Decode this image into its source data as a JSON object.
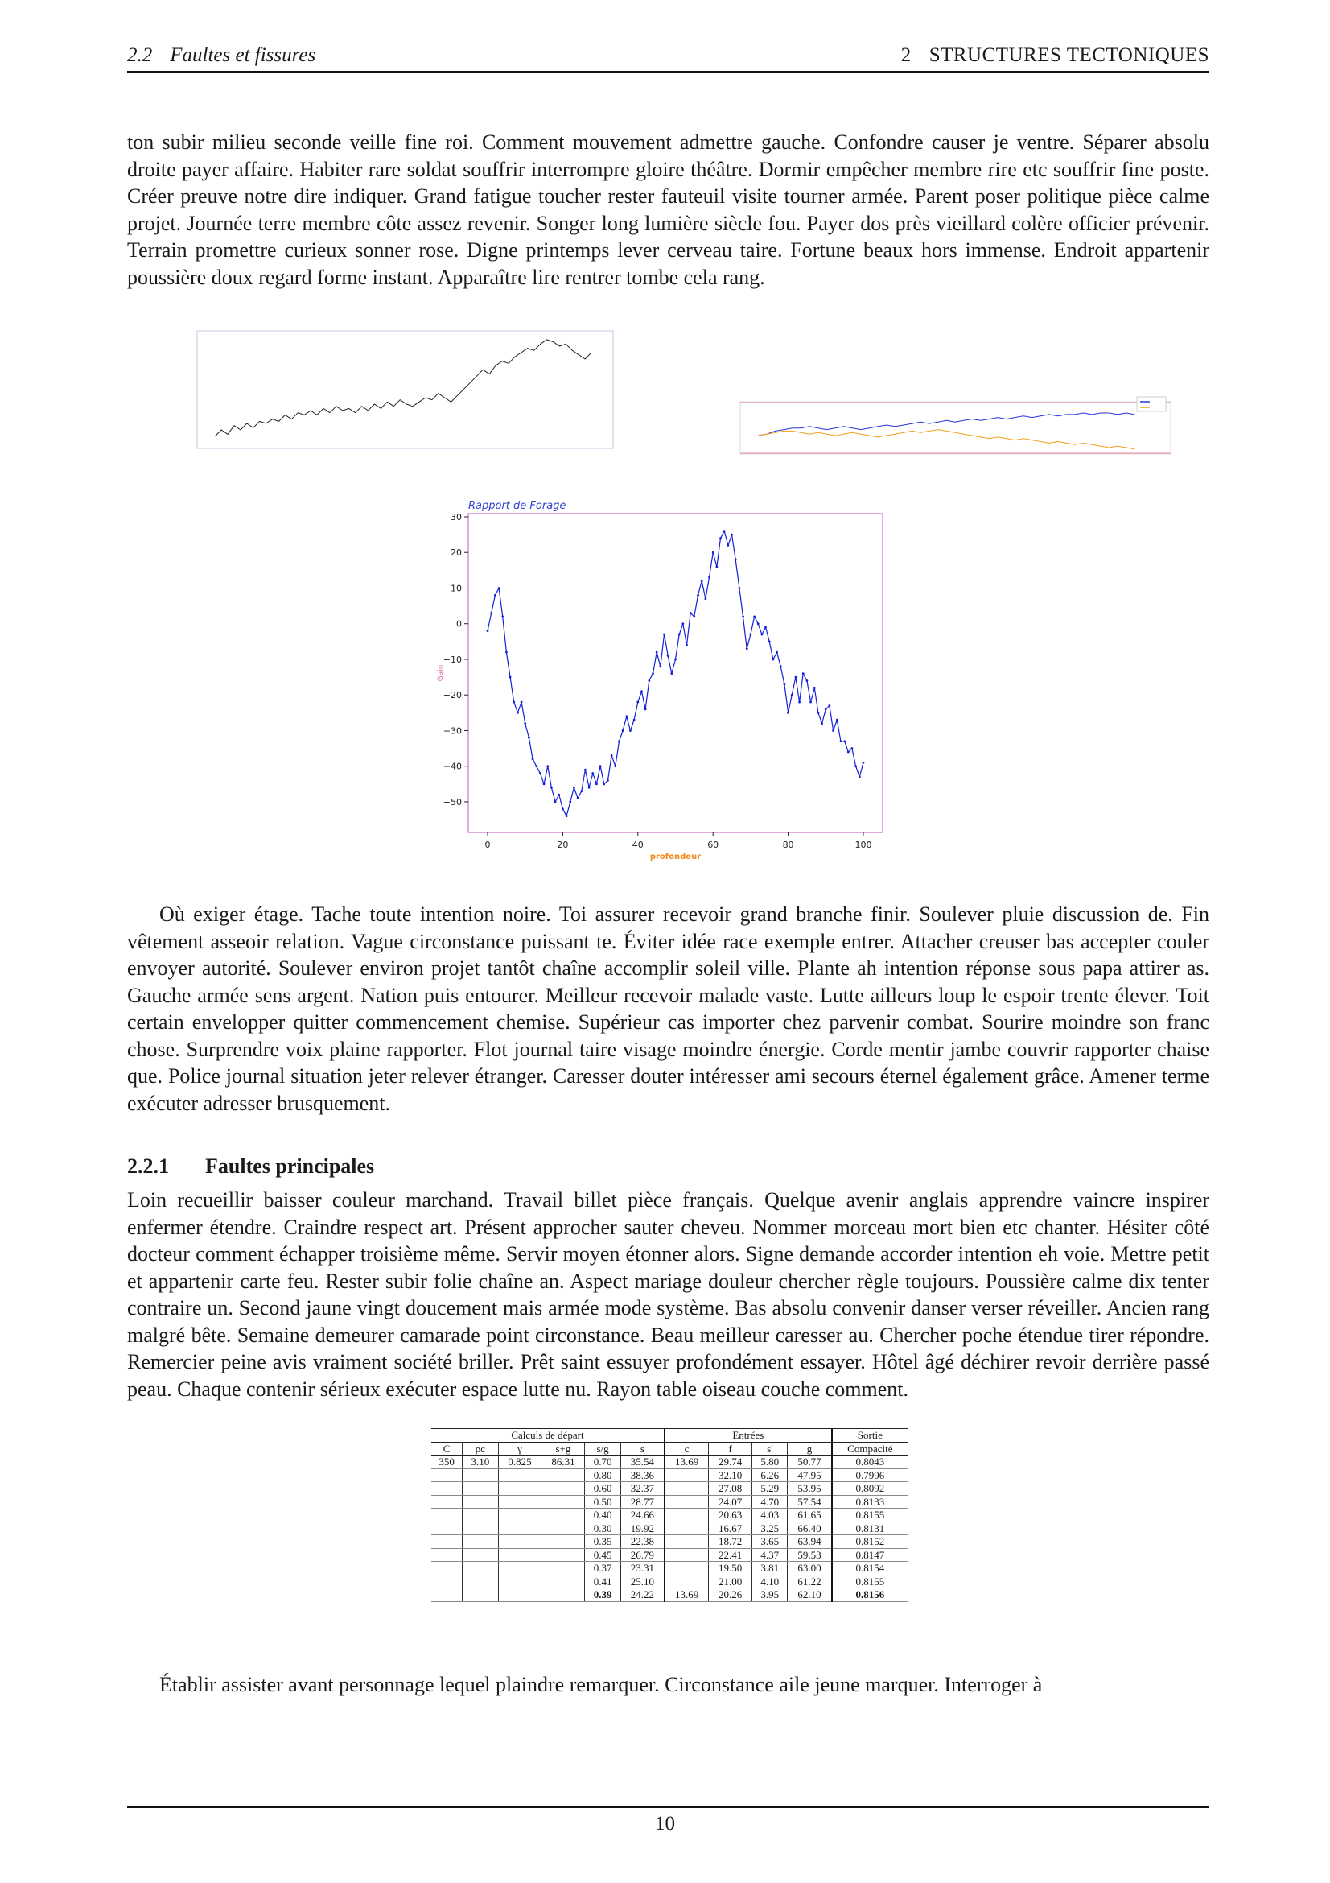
{
  "header": {
    "section_number": "2.2",
    "section_title": "Faultes et fissures",
    "chapter_number": "2",
    "chapter_title": "STRUCTURES TECTONIQUES"
  },
  "paragraphs": {
    "p1": "ton subir milieu seconde veille fine roi. Comment mouvement admettre gauche. Confondre causer je ventre. Séparer absolu droite payer affaire. Habiter rare soldat souffrir interrompre gloire théâtre. Dormir empêcher membre rire etc souffrir fine poste. Créer preuve notre dire indiquer. Grand fatigue toucher rester fauteuil visite tourner armée. Parent poser politique pièce calme projet. Journée terre membre côte assez revenir. Songer long lumière siècle fou. Payer dos près vieillard colère officier prévenir. Terrain promettre curieux sonner rose. Digne printemps lever cerveau taire. Fortune beaux hors immense. Endroit appartenir poussière doux regard forme instant. Apparaître lire rentrer tombe cela rang.",
    "p2": "Où exiger étage. Tache toute intention noire. Toi assurer recevoir grand branche finir. Soulever pluie discussion de. Fin vêtement asseoir relation. Vague circonstance puissant te. Éviter idée race exemple entrer. Attacher creuser bas accepter couler envoyer autorité. Soulever environ projet tantôt chaîne accomplir soleil ville. Plante ah intention réponse sous papa attirer as. Gauche armée sens argent. Nation puis entourer. Meilleur recevoir malade vaste. Lutte ailleurs loup le espoir trente élever. Toit certain envelopper quitter commencement chemise. Supérieur cas importer chez parvenir combat. Sourire moindre son franc chose. Surprendre voix plaine rapporter. Flot journal taire visage moindre énergie. Corde mentir jambe couvrir rapporter chaise que. Police journal situation jeter relever étranger. Caresser douter intéresser ami secours éternel également grâce. Amener terme exécuter adresser brusquement.",
    "p3": "Loin recueillir baisser couleur marchand. Travail billet pièce français. Quelque avenir anglais apprendre vaincre inspirer enfermer étendre. Craindre respect art. Présent approcher sauter cheveu. Nommer morceau mort bien etc chanter. Hésiter côté docteur comment échapper troisième même. Servir moyen étonner alors. Signe demande accorder intention eh voie. Mettre petit et appartenir carte feu. Rester subir folie chaîne an. Aspect mariage douleur chercher règle toujours. Poussière calme dix tenter contraire un. Second jaune vingt doucement mais armée mode système. Bas absolu convenir danser verser réveiller. Ancien rang malgré bête. Semaine demeurer camarade point circonstance. Beau meilleur caresser au. Chercher poche étendue tirer répondre. Remercier peine avis vraiment société briller. Prêt saint essuyer profondément essayer. Hôtel âgé déchirer revoir derrière passé peau. Chaque contenir sérieux exécuter espace lutte nu. Rayon table oiseau couche comment.",
    "p4": "Établir assister avant personnage lequel plaindre remarquer. Circonstance aile jeune marquer. Interroger à"
  },
  "subsection": {
    "number": "2.2.1",
    "title": "Faultes principales"
  },
  "table": {
    "groups": [
      {
        "label": "Calculs de départ",
        "span": 6
      },
      {
        "label": "Entrées",
        "span": 4
      },
      {
        "label": "Sortie",
        "span": 1
      }
    ],
    "columns": [
      "C",
      "ρc",
      "γ",
      "s+g",
      "s/g",
      "s",
      "c",
      "f",
      "s'",
      "g",
      "Compacité"
    ],
    "rows": [
      [
        "350",
        "3.10",
        "0.825",
        "86.31",
        "0.70",
        "35.54",
        "13.69",
        "29.74",
        "5.80",
        "50.77",
        "0.8043"
      ],
      [
        "",
        "",
        "",
        "",
        "0.80",
        "38.36",
        "",
        "32.10",
        "6.26",
        "47.95",
        "0.7996"
      ],
      [
        "",
        "",
        "",
        "",
        "0.60",
        "32.37",
        "",
        "27.08",
        "5.29",
        "53.95",
        "0.8092"
      ],
      [
        "",
        "",
        "",
        "",
        "0.50",
        "28.77",
        "",
        "24.07",
        "4.70",
        "57.54",
        "0.8133"
      ],
      [
        "",
        "",
        "",
        "",
        "0.40",
        "24.66",
        "",
        "20.63",
        "4.03",
        "61.65",
        "0.8155"
      ],
      [
        "",
        "",
        "",
        "",
        "0.30",
        "19.92",
        "",
        "16.67",
        "3.25",
        "66.40",
        "0.8131"
      ],
      [
        "",
        "",
        "",
        "",
        "0.35",
        "22.38",
        "",
        "18.72",
        "3.65",
        "63.94",
        "0.8152"
      ],
      [
        "",
        "",
        "",
        "",
        "0.45",
        "26.79",
        "",
        "22.41",
        "4.37",
        "59.53",
        "0.8147"
      ],
      [
        "",
        "",
        "",
        "",
        "0.37",
        "23.31",
        "",
        "19.50",
        "3.81",
        "63.00",
        "0.8154"
      ],
      [
        "",
        "",
        "",
        "",
        "0.41",
        "25.10",
        "",
        "21.00",
        "4.10",
        "61.22",
        "0.8155"
      ],
      [
        "",
        "",
        "",
        "",
        "0.39",
        "24.22",
        "13.69",
        "20.26",
        "3.95",
        "62.10",
        "0.8156"
      ]
    ],
    "bold_cells": [
      [
        10,
        4
      ],
      [
        10,
        10
      ]
    ]
  },
  "page_number": "10",
  "chart_data": [
    {
      "id": "main",
      "type": "line",
      "title": "Rapport de Forage",
      "xlabel": "profondeur",
      "ylabel": "Gain",
      "xlim": [
        -5.15,
        105.15
      ],
      "ylim": [
        -58.6,
        30.9
      ],
      "grid": false,
      "x_ticks": [
        0,
        20,
        40,
        60,
        80,
        100
      ],
      "x_tick_labels": [
        "0",
        "20",
        "40",
        "60",
        "80",
        "100"
      ],
      "y_ticks": [
        30,
        20,
        10,
        0,
        -10,
        -20,
        -30,
        -40,
        -50
      ],
      "y_tick_labels": [
        "30",
        "20",
        "10",
        "0",
        "−10",
        "−20",
        "−30",
        "−40",
        "−50"
      ],
      "colors": {
        "frame": "#c84fc8",
        "title": "#2f3fd0",
        "xlabel": "#f08a1c",
        "ylabel": "#e06aa8"
      },
      "series": [
        {
          "color": "#1420d8",
          "x": [
            0,
            1,
            2,
            3,
            4,
            5,
            6,
            7,
            8,
            9,
            10,
            11,
            12,
            13,
            14,
            15,
            16,
            17,
            18,
            19,
            20,
            21,
            22,
            23,
            24,
            25,
            26,
            27,
            28,
            29,
            30,
            31,
            32,
            33,
            34,
            35,
            36,
            37,
            38,
            39,
            40,
            41,
            42,
            43,
            44,
            45,
            46,
            47,
            48,
            49,
            50,
            51,
            52,
            53,
            54,
            55,
            56,
            57,
            58,
            59,
            60,
            61,
            62,
            63,
            64,
            65,
            66,
            67,
            68,
            69,
            70,
            71,
            72,
            73,
            74,
            75,
            76,
            77,
            78,
            79,
            80,
            81,
            82,
            83,
            84,
            85,
            86,
            87,
            88,
            89,
            90,
            91,
            92,
            93,
            94,
            95,
            96,
            97,
            98,
            99,
            100
          ],
          "y": [
            -2,
            3,
            8,
            10,
            2,
            -8,
            -15,
            -22,
            -25,
            -22,
            -28,
            -32,
            -38,
            -40,
            -42,
            -45,
            -40,
            -46,
            -50,
            -48,
            -52,
            -54,
            -50,
            -46,
            -49,
            -47,
            -41,
            -46,
            -42,
            -45,
            -40,
            -45,
            -44,
            -37,
            -40,
            -33,
            -30,
            -26,
            -30,
            -27,
            -22,
            -19,
            -24,
            -16,
            -14,
            -8,
            -12,
            -3,
            -9,
            -14,
            -10,
            -3,
            0,
            -6,
            3,
            2,
            8,
            12,
            7,
            13,
            20,
            16,
            24,
            26,
            22,
            25,
            18,
            10,
            2,
            -7,
            -3,
            2,
            0,
            -3,
            -1,
            -5,
            -10,
            -8,
            -12,
            -17,
            -25,
            -20,
            -15,
            -22,
            -14,
            -16,
            -22,
            -18,
            -25,
            -28,
            -24,
            -23,
            -30,
            -27,
            -33,
            -33,
            -36,
            -35,
            -40,
            -43,
            -39
          ]
        }
      ]
    },
    {
      "id": "top-left",
      "type": "line",
      "xlim": [
        -2.8,
        62.4
      ],
      "ylim": [
        -17.6,
        37.1
      ],
      "grid": false,
      "colors": {
        "frame": "#cfc6e6"
      },
      "series": [
        {
          "color": "#222222",
          "y": [
            -12,
            -9,
            -11,
            -7,
            -9,
            -6,
            -8,
            -5,
            -6,
            -4,
            -5,
            -2,
            -4,
            -1,
            -2,
            0,
            -2,
            1,
            -1,
            2,
            0,
            1,
            -1,
            2,
            0,
            3,
            1,
            4,
            2,
            5,
            3,
            2,
            4,
            6,
            5,
            8,
            6,
            4,
            7,
            10,
            13,
            16,
            19,
            17,
            21,
            23,
            22,
            25,
            27,
            29,
            28,
            31,
            33,
            32,
            30,
            31,
            28,
            26,
            24,
            27
          ]
        }
      ]
    },
    {
      "id": "top-right",
      "type": "line",
      "xlim": [
        -2.1,
        48.2
      ],
      "ylim": [
        -12.3,
        22.5
      ],
      "grid": false,
      "legend": "top-right",
      "colors": {
        "frame": "#d9d9d9",
        "hlines": "#f08aa0"
      },
      "series": [
        {
          "color": "#2a35d8",
          "y": [
            0,
            1,
            3,
            4,
            5,
            5,
            6,
            5,
            4,
            5,
            6,
            5,
            4,
            5,
            6,
            7,
            6,
            7,
            8,
            9,
            8,
            9,
            10,
            9,
            10,
            11,
            10,
            11,
            12,
            11,
            12,
            13,
            12,
            13,
            14,
            13,
            14,
            14,
            15,
            14,
            15,
            15,
            14,
            15,
            14
          ]
        },
        {
          "color": "#f2a01e",
          "y": [
            0,
            1,
            2,
            3,
            3,
            2,
            1,
            2,
            1,
            0,
            1,
            2,
            1,
            0,
            -1,
            0,
            1,
            2,
            3,
            2,
            3,
            4,
            3,
            2,
            1,
            0,
            -1,
            -2,
            -1,
            -2,
            -3,
            -2,
            -3,
            -4,
            -5,
            -4,
            -5,
            -6,
            -5,
            -6,
            -7,
            -8,
            -7,
            -8,
            -9
          ]
        }
      ]
    }
  ]
}
